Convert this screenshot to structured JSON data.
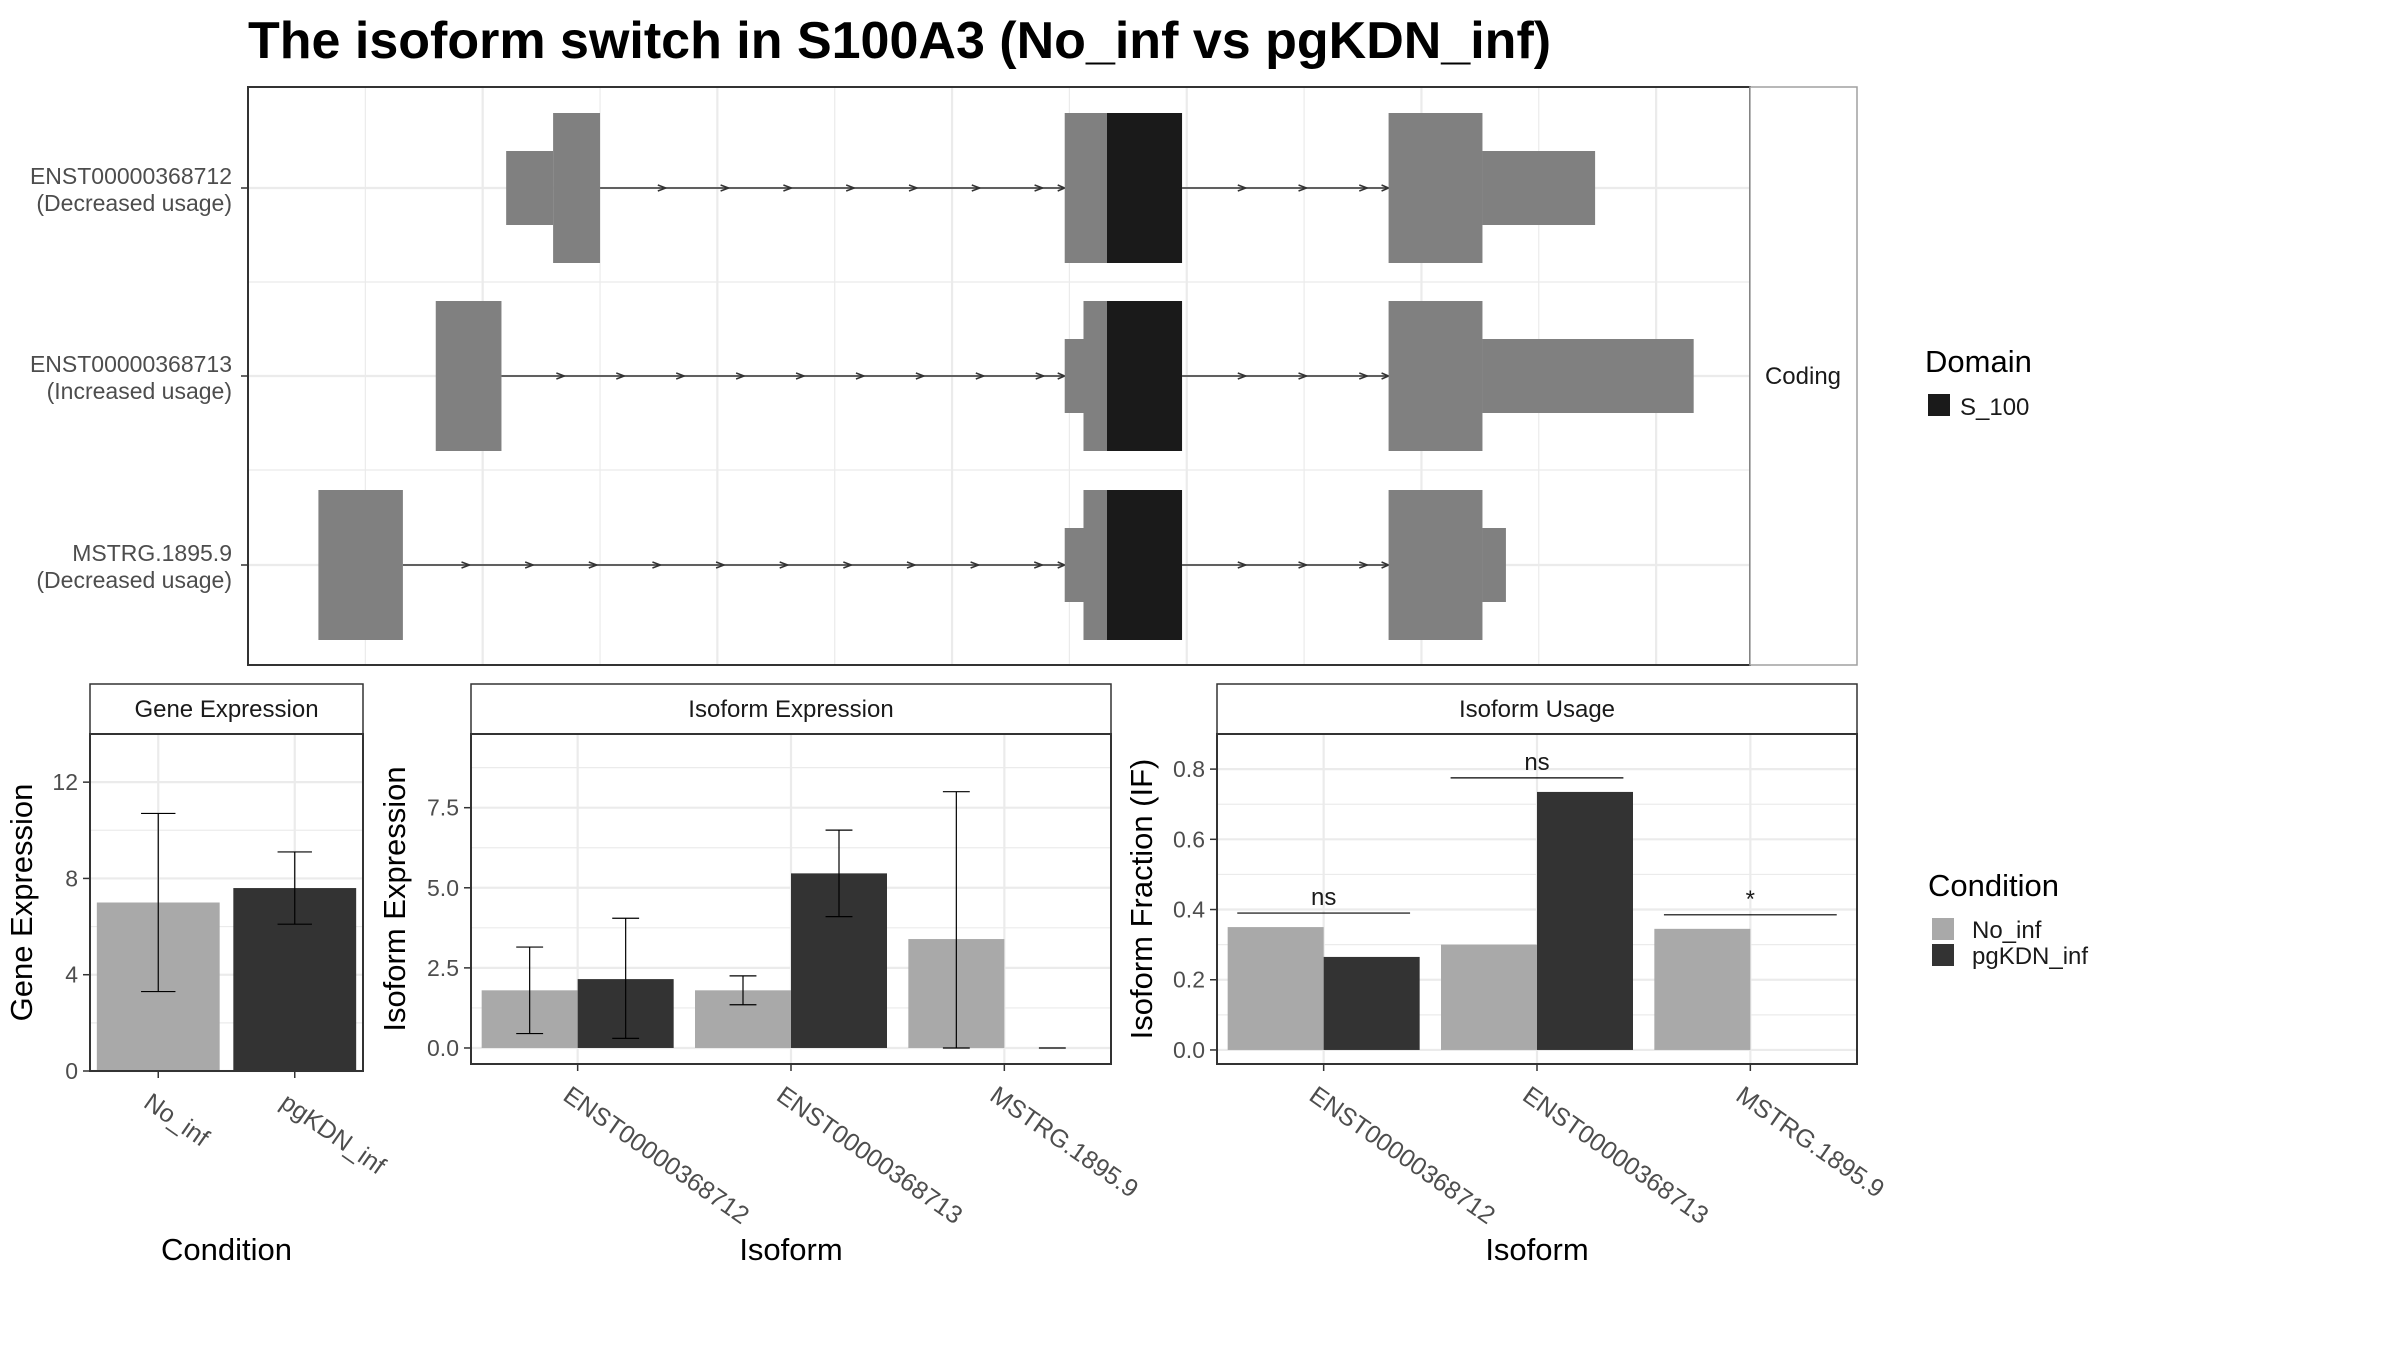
{
  "title": "The isoform switch in S100A3 (No_inf vs pgKDN_inf)",
  "colors": {
    "no_inf": "#a9a9a9",
    "pgkdn_inf": "#333333",
    "transcript_body": "#808080",
    "domain_s100": "#1a1a1a",
    "grid": "#ebebeb",
    "strip_bg": "#ffffff"
  },
  "chart_data": [
    {
      "type": "transcript_structure",
      "strip_label": "Coding",
      "legend_title": "Domain",
      "legend_items": [
        {
          "label": "S_100",
          "color": "#1a1a1a"
        }
      ],
      "transcripts": [
        {
          "id": "ENST00000368712",
          "usage": "(Decreased usage)",
          "intron": [
            0.55,
            0.98
          ],
          "exons": [
            {
              "start": 0.55,
              "end": 0.65,
              "kind": "utr"
            },
            {
              "start": 0.65,
              "end": 0.75,
              "kind": "cds"
            },
            {
              "start": 1.74,
              "end": 1.83,
              "kind": "cds"
            },
            {
              "start": 1.83,
              "end": 1.99,
              "kind": "domain"
            },
            {
              "start": 2.43,
              "end": 2.63,
              "kind": "cds"
            },
            {
              "start": 2.63,
              "end": 2.87,
              "kind": "utr"
            }
          ]
        },
        {
          "id": "ENST00000368713",
          "usage": "(Increased usage)",
          "exons": [
            {
              "start": 0.4,
              "end": 0.54,
              "kind": "cds"
            },
            {
              "start": 1.74,
              "end": 1.78,
              "kind": "utr"
            },
            {
              "start": 1.78,
              "end": 1.83,
              "kind": "cds"
            },
            {
              "start": 1.83,
              "end": 1.99,
              "kind": "domain"
            },
            {
              "start": 2.43,
              "end": 2.63,
              "kind": "cds"
            },
            {
              "start": 2.63,
              "end": 3.08,
              "kind": "utr"
            }
          ]
        },
        {
          "id": "MSTRG.1895.9",
          "usage": "(Decreased usage)",
          "exons": [
            {
              "start": 0.15,
              "end": 0.33,
              "kind": "cds"
            },
            {
              "start": 1.74,
              "end": 1.78,
              "kind": "utr"
            },
            {
              "start": 1.78,
              "end": 1.83,
              "kind": "cds"
            },
            {
              "start": 1.83,
              "end": 1.99,
              "kind": "domain"
            },
            {
              "start": 2.43,
              "end": 2.63,
              "kind": "cds"
            },
            {
              "start": 2.63,
              "end": 2.68,
              "kind": "utr"
            }
          ]
        }
      ]
    },
    {
      "type": "bar",
      "strip_label": "Gene Expression",
      "xlabel": "Condition",
      "ylabel": "Gene Expression",
      "ylim": [
        0,
        14
      ],
      "yticks": [
        0,
        4,
        8,
        12
      ],
      "categories": [
        "No_inf",
        "pgKDN_inf"
      ],
      "values": [
        7.0,
        7.6
      ],
      "errors_low": [
        3.3,
        6.1
      ],
      "errors_high": [
        10.7,
        9.1
      ]
    },
    {
      "type": "bar",
      "strip_label": "Isoform Expression",
      "xlabel": "Isoform",
      "ylabel": "Isoform Expression",
      "ylim": [
        -0.5,
        9.8
      ],
      "yticks": [
        0.0,
        2.5,
        5.0,
        7.5
      ],
      "ytick_labels": [
        "0.0",
        "2.5",
        "5.0",
        "7.5"
      ],
      "categories": [
        "ENST00000368712",
        "ENST00000368713",
        "MSTRG.1895.9"
      ],
      "series": [
        {
          "name": "No_inf",
          "values": [
            1.8,
            1.8,
            3.4
          ],
          "errors_low": [
            0.45,
            1.35,
            0.0
          ],
          "errors_high": [
            3.15,
            2.25,
            8.0
          ]
        },
        {
          "name": "pgKDN_inf",
          "values": [
            2.15,
            5.45,
            0.0
          ],
          "errors_low": [
            0.3,
            4.1,
            0.0
          ],
          "errors_high": [
            4.05,
            6.8,
            0.0
          ]
        }
      ]
    },
    {
      "type": "bar",
      "strip_label": "Isoform Usage",
      "xlabel": "Isoform",
      "ylabel": "Isoform Fraction (IF)",
      "ylim": [
        -0.04,
        0.9
      ],
      "yticks": [
        0.0,
        0.2,
        0.4,
        0.6,
        0.8
      ],
      "ytick_labels": [
        "0.0",
        "0.2",
        "0.4",
        "0.6",
        "0.8"
      ],
      "categories": [
        "ENST00000368712",
        "ENST00000368713",
        "MSTRG.1895.9"
      ],
      "series": [
        {
          "name": "No_inf",
          "values": [
            0.35,
            0.3,
            0.345
          ]
        },
        {
          "name": "pgKDN_inf",
          "values": [
            0.265,
            0.735,
            0.0
          ]
        }
      ],
      "significance": [
        {
          "label": "ns",
          "y": 0.39
        },
        {
          "label": "ns",
          "y": 0.775
        },
        {
          "label": "*",
          "y": 0.385
        }
      ],
      "legend_title": "Condition",
      "legend_items": [
        {
          "label": "No_inf",
          "color": "#a9a9a9"
        },
        {
          "label": "pgKDN_inf",
          "color": "#333333"
        }
      ]
    }
  ]
}
